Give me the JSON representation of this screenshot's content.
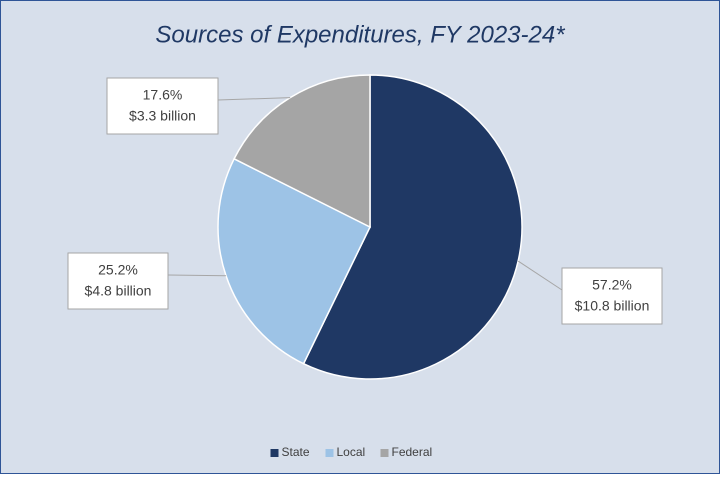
{
  "chart_data": {
    "type": "pie",
    "title": "Sources of Expenditures, FY 2023-24*",
    "categories": [
      "State",
      "Local",
      "Federal"
    ],
    "values": [
      57.2,
      25.2,
      17.6
    ],
    "value_labels": [
      "57.2%",
      "25.2%",
      "17.6%"
    ],
    "amounts": [
      10.8,
      4.8,
      3.3
    ],
    "amount_labels": [
      "$10.8 billion",
      "$4.8 billion",
      "$3.3 billion"
    ],
    "colors": [
      "#1f3864",
      "#9dc3e6",
      "#a5a5a5"
    ],
    "legend": "bottom"
  }
}
